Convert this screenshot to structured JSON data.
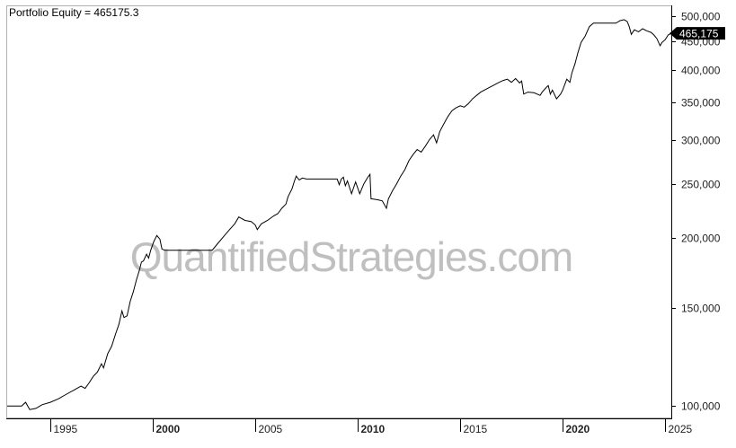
{
  "chart_data": {
    "type": "line",
    "title": "Portfolio Equity = 465175.3",
    "watermark": "QuantifiedStrategies.com",
    "y_scale": "log",
    "ylim": [
      95000,
      520000
    ],
    "xlim": [
      1992.9,
      2025.3
    ],
    "y_ticks": [
      {
        "value": 100000,
        "label": "100,000"
      },
      {
        "value": 150000,
        "label": "150,000"
      },
      {
        "value": 200000,
        "label": "200,000"
      },
      {
        "value": 250000,
        "label": "250,000"
      },
      {
        "value": 300000,
        "label": "300,000"
      },
      {
        "value": 350000,
        "label": "350,000"
      },
      {
        "value": 400000,
        "label": "400,000"
      },
      {
        "value": 450000,
        "label": "450,000"
      },
      {
        "value": 500000,
        "label": "500,000"
      }
    ],
    "x_ticks": [
      {
        "value": 1995,
        "label": "1995",
        "major": false
      },
      {
        "value": 2000,
        "label": "2000",
        "major": true
      },
      {
        "value": 2005,
        "label": "2005",
        "major": false
      },
      {
        "value": 2010,
        "label": "2010",
        "major": true
      },
      {
        "value": 2015,
        "label": "2015",
        "major": false
      },
      {
        "value": 2020,
        "label": "2020",
        "major": true
      },
      {
        "value": 2025,
        "label": "2025",
        "major": false
      }
    ],
    "last_value_label": "465,175",
    "grid": false,
    "series": [
      {
        "color": "#000000",
        "points": [
          [
            1992.9,
            100000
          ],
          [
            1993.6,
            100000
          ],
          [
            1993.8,
            101500
          ],
          [
            1994.0,
            98500
          ],
          [
            1994.3,
            99000
          ],
          [
            1994.6,
            100500
          ],
          [
            1995.0,
            101500
          ],
          [
            1995.4,
            103000
          ],
          [
            1995.8,
            105000
          ],
          [
            1996.2,
            107000
          ],
          [
            1996.5,
            108500
          ],
          [
            1996.7,
            107500
          ],
          [
            1996.9,
            110000
          ],
          [
            1997.1,
            113000
          ],
          [
            1997.3,
            115000
          ],
          [
            1997.5,
            119000
          ],
          [
            1997.6,
            117000
          ],
          [
            1997.8,
            124000
          ],
          [
            1998.0,
            128000
          ],
          [
            1998.2,
            135000
          ],
          [
            1998.35,
            140000
          ],
          [
            1998.5,
            148000
          ],
          [
            1998.6,
            144000
          ],
          [
            1998.75,
            145000
          ],
          [
            1998.9,
            154000
          ],
          [
            1999.05,
            160000
          ],
          [
            1999.2,
            168000
          ],
          [
            1999.35,
            175000
          ],
          [
            1999.45,
            181000
          ],
          [
            1999.55,
            182000
          ],
          [
            1999.7,
            187000
          ],
          [
            1999.8,
            184000
          ],
          [
            1999.9,
            190000
          ],
          [
            2000.05,
            197000
          ],
          [
            2000.2,
            202000
          ],
          [
            2000.35,
            199000
          ],
          [
            2000.45,
            191000
          ],
          [
            2000.6,
            190000
          ],
          [
            2001.0,
            190000
          ],
          [
            2001.5,
            190000
          ],
          [
            2002.0,
            190000
          ],
          [
            2002.5,
            190000
          ],
          [
            2002.9,
            190000
          ],
          [
            2003.0,
            192000
          ],
          [
            2003.2,
            196000
          ],
          [
            2003.5,
            202000
          ],
          [
            2003.8,
            208000
          ],
          [
            2004.0,
            212000
          ],
          [
            2004.2,
            218000
          ],
          [
            2004.5,
            215000
          ],
          [
            2004.8,
            214000
          ],
          [
            2005.0,
            211000
          ],
          [
            2005.1,
            207000
          ],
          [
            2005.3,
            212000
          ],
          [
            2005.6,
            215000
          ],
          [
            2005.9,
            219000
          ],
          [
            2006.1,
            221000
          ],
          [
            2006.3,
            226000
          ],
          [
            2006.5,
            230000
          ],
          [
            2006.6,
            237000
          ],
          [
            2006.8,
            245000
          ],
          [
            2006.9,
            252000
          ],
          [
            2007.0,
            258000
          ],
          [
            2007.15,
            254000
          ],
          [
            2007.3,
            256000
          ],
          [
            2007.5,
            255000
          ],
          [
            2008.0,
            255000
          ],
          [
            2008.5,
            255000
          ],
          [
            2009.0,
            255000
          ],
          [
            2009.1,
            249000
          ],
          [
            2009.2,
            255000
          ],
          [
            2009.3,
            257000
          ],
          [
            2009.4,
            248000
          ],
          [
            2009.5,
            253000
          ],
          [
            2009.7,
            240000
          ],
          [
            2009.9,
            252000
          ],
          [
            2010.1,
            240000
          ],
          [
            2010.3,
            250000
          ],
          [
            2010.5,
            257000
          ],
          [
            2010.6,
            260000
          ],
          [
            2010.65,
            235000
          ],
          [
            2010.7,
            235000
          ],
          [
            2011.0,
            234000
          ],
          [
            2011.2,
            233000
          ],
          [
            2011.4,
            226000
          ],
          [
            2011.5,
            235000
          ],
          [
            2011.7,
            243000
          ],
          [
            2011.9,
            250000
          ],
          [
            2012.1,
            258000
          ],
          [
            2012.3,
            265000
          ],
          [
            2012.5,
            275000
          ],
          [
            2012.7,
            282000
          ],
          [
            2012.9,
            288000
          ],
          [
            2013.1,
            285000
          ],
          [
            2013.3,
            292000
          ],
          [
            2013.5,
            300000
          ],
          [
            2013.7,
            306000
          ],
          [
            2013.85,
            296000
          ],
          [
            2014.0,
            310000
          ],
          [
            2014.2,
            320000
          ],
          [
            2014.4,
            330000
          ],
          [
            2014.6,
            338000
          ],
          [
            2014.8,
            342000
          ],
          [
            2015.0,
            345000
          ],
          [
            2015.2,
            343000
          ],
          [
            2015.4,
            348000
          ],
          [
            2015.6,
            355000
          ],
          [
            2015.8,
            360000
          ],
          [
            2016.0,
            365000
          ],
          [
            2016.3,
            370000
          ],
          [
            2016.6,
            375000
          ],
          [
            2016.9,
            380000
          ],
          [
            2017.1,
            383000
          ],
          [
            2017.3,
            385000
          ],
          [
            2017.5,
            380000
          ],
          [
            2017.7,
            386000
          ],
          [
            2017.9,
            379000
          ],
          [
            2018.0,
            382000
          ],
          [
            2018.1,
            362000
          ],
          [
            2018.3,
            365000
          ],
          [
            2018.6,
            364000
          ],
          [
            2018.9,
            360000
          ],
          [
            2019.0,
            365000
          ],
          [
            2019.2,
            372000
          ],
          [
            2019.3,
            375000
          ],
          [
            2019.4,
            362000
          ],
          [
            2019.5,
            368000
          ],
          [
            2019.7,
            355000
          ],
          [
            2019.9,
            362000
          ],
          [
            2020.0,
            368000
          ],
          [
            2020.2,
            385000
          ],
          [
            2020.35,
            380000
          ],
          [
            2020.45,
            395000
          ],
          [
            2020.6,
            410000
          ],
          [
            2020.75,
            430000
          ],
          [
            2020.9,
            448000
          ],
          [
            2021.1,
            460000
          ],
          [
            2021.3,
            478000
          ],
          [
            2021.5,
            485000
          ],
          [
            2021.8,
            485000
          ],
          [
            2022.0,
            485000
          ],
          [
            2022.3,
            485000
          ],
          [
            2022.6,
            485000
          ],
          [
            2022.8,
            490000
          ],
          [
            2023.0,
            492000
          ],
          [
            2023.15,
            488000
          ],
          [
            2023.25,
            478000
          ],
          [
            2023.35,
            463000
          ],
          [
            2023.5,
            472000
          ],
          [
            2023.7,
            468000
          ],
          [
            2023.9,
            474000
          ],
          [
            2024.1,
            470000
          ],
          [
            2024.3,
            467000
          ],
          [
            2024.45,
            462000
          ],
          [
            2024.6,
            455000
          ],
          [
            2024.75,
            442000
          ],
          [
            2024.85,
            448000
          ],
          [
            2025.0,
            453000
          ],
          [
            2025.15,
            462000
          ],
          [
            2025.3,
            465175
          ]
        ]
      }
    ]
  }
}
